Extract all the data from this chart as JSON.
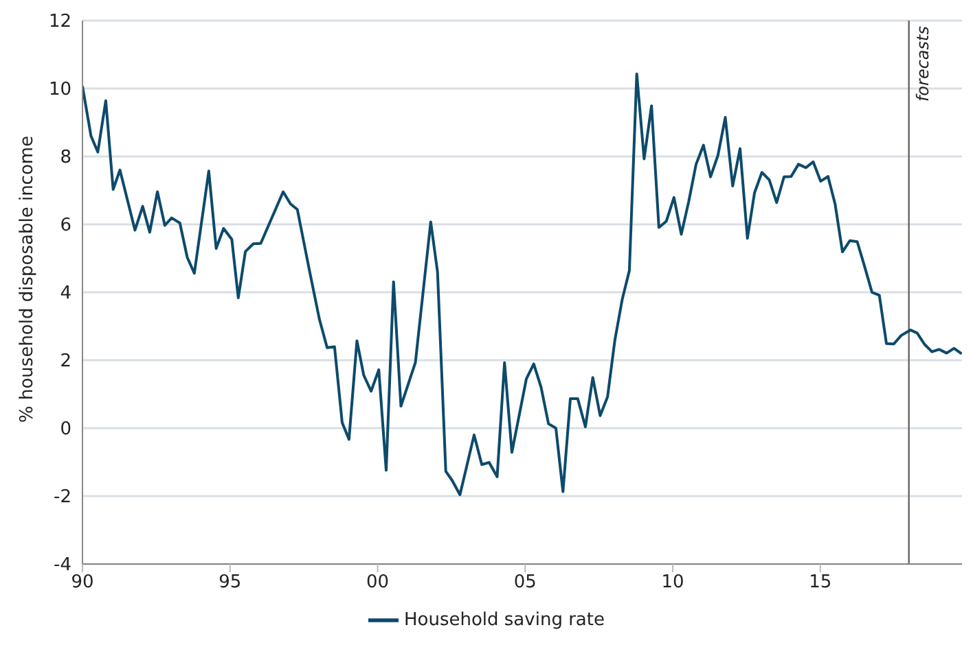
{
  "chart_data": {
    "type": "line",
    "ylabel": "% household disposable income",
    "x": [
      1990.0,
      1990.29,
      1990.52,
      1990.79,
      1991.04,
      1991.27,
      1991.78,
      1992.04,
      1992.28,
      1992.54,
      1992.79,
      1993.02,
      1993.3,
      1993.55,
      1993.79,
      1994.28,
      1994.53,
      1994.78,
      1995.06,
      1995.28,
      1995.52,
      1995.79,
      1996.04,
      1996.8,
      1997.05,
      1997.28,
      1997.67,
      1998.03,
      1998.29,
      1998.54,
      1998.8,
      1999.03,
      1999.3,
      1999.53,
      1999.78,
      2000.04,
      2000.29,
      2000.54,
      2000.79,
      2001.28,
      2001.8,
      2002.03,
      2002.31,
      2002.52,
      2002.79,
      2003.27,
      2003.53,
      2003.78,
      2004.05,
      2004.3,
      2004.55,
      2005.04,
      2005.29,
      2005.54,
      2005.79,
      2006.04,
      2006.28,
      2006.53,
      2006.78,
      2007.04,
      2007.29,
      2007.54,
      2007.79,
      2008.04,
      2008.29,
      2008.53,
      2008.78,
      2009.03,
      2009.28,
      2009.53,
      2009.78,
      2010.04,
      2010.29,
      2010.54,
      2010.79,
      2011.04,
      2011.28,
      2011.53,
      2011.78,
      2012.03,
      2012.28,
      2012.53,
      2012.77,
      2013.02,
      2013.27,
      2013.52,
      2013.77,
      2014.01,
      2014.26,
      2014.51,
      2014.76,
      2015.01,
      2015.26,
      2015.5,
      2015.75,
      2016.0,
      2016.25,
      2016.5,
      2016.75,
      2017.0,
      2017.24,
      2017.49,
      2017.74,
      2018.05,
      2018.28,
      2018.53,
      2018.78,
      2019.03,
      2019.28,
      2019.53,
      2019.79
    ],
    "series": [
      {
        "name": "Household saving rate",
        "color": "#0d4a6b",
        "values": [
          10.07,
          8.6,
          8.13,
          9.64,
          7.03,
          7.6,
          5.83,
          6.53,
          5.77,
          6.96,
          5.97,
          6.19,
          6.04,
          5.03,
          4.56,
          7.57,
          5.29,
          5.88,
          5.56,
          3.84,
          5.2,
          5.43,
          5.44,
          6.96,
          6.6,
          6.44,
          4.73,
          3.2,
          2.37,
          2.4,
          0.16,
          -0.33,
          2.57,
          1.56,
          1.09,
          1.72,
          -1.24,
          4.31,
          0.65,
          1.93,
          6.07,
          4.6,
          -1.27,
          -1.53,
          -1.96,
          -0.2,
          -1.07,
          -1.01,
          -1.43,
          1.93,
          -0.71,
          1.45,
          1.89,
          1.2,
          0.13,
          0.0,
          -1.87,
          0.87,
          0.87,
          0.04,
          1.49,
          0.37,
          0.92,
          2.6,
          3.8,
          4.64,
          10.43,
          7.93,
          9.49,
          5.91,
          6.09,
          6.79,
          5.71,
          6.67,
          7.77,
          8.33,
          7.4,
          8.03,
          9.15,
          7.13,
          8.23,
          5.59,
          6.93,
          7.53,
          7.31,
          6.64,
          7.4,
          7.41,
          7.77,
          7.67,
          7.84,
          7.27,
          7.41,
          6.6,
          5.19,
          5.52,
          5.49,
          4.76,
          4.0,
          3.91,
          2.49,
          2.48,
          2.73,
          2.89,
          2.8,
          2.47,
          2.25,
          2.32,
          2.21,
          2.35,
          2.19
        ]
      }
    ],
    "xlim": [
      1990,
      2019.8
    ],
    "xticks": [
      {
        "value": 1990,
        "label": "90"
      },
      {
        "value": 1995,
        "label": "95"
      },
      {
        "value": 2000,
        "label": "00"
      },
      {
        "value": 2005,
        "label": "05"
      },
      {
        "value": 2010,
        "label": "10"
      },
      {
        "value": 2015,
        "label": "15"
      }
    ],
    "ylim": [
      -4,
      12
    ],
    "yticks": [
      -4,
      -2,
      0,
      2,
      4,
      6,
      8,
      10,
      12
    ],
    "grid": "y",
    "legend": "bottom",
    "marker": "none",
    "line_style": "solid",
    "ref_lines": [
      {
        "axis": "x",
        "value": 2018,
        "label": "forecasts",
        "color": "#666666"
      }
    ]
  }
}
